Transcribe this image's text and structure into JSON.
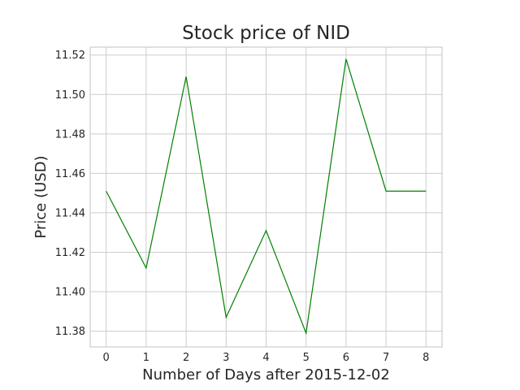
{
  "chart_data": {
    "type": "line",
    "title": "Stock price of NID",
    "xlabel": "Number of Days after 2015-12-02",
    "ylabel": "Price (USD)",
    "x": [
      0,
      1,
      2,
      3,
      4,
      5,
      6,
      7,
      8
    ],
    "series": [
      {
        "values": [
          11.451,
          11.412,
          11.509,
          11.387,
          11.431,
          11.379,
          11.518,
          11.451,
          11.451
        ],
        "color": "#008000"
      }
    ],
    "xlim": [
      -0.4,
      8.4
    ],
    "ylim": [
      11.372,
      11.524
    ],
    "xticks": [
      "0",
      "1",
      "2",
      "3",
      "4",
      "5",
      "6",
      "7",
      "8"
    ],
    "yticks": [
      "11.38",
      "11.40",
      "11.42",
      "11.44",
      "11.46",
      "11.48",
      "11.50",
      "11.52"
    ],
    "grid": true,
    "legend": "none"
  }
}
